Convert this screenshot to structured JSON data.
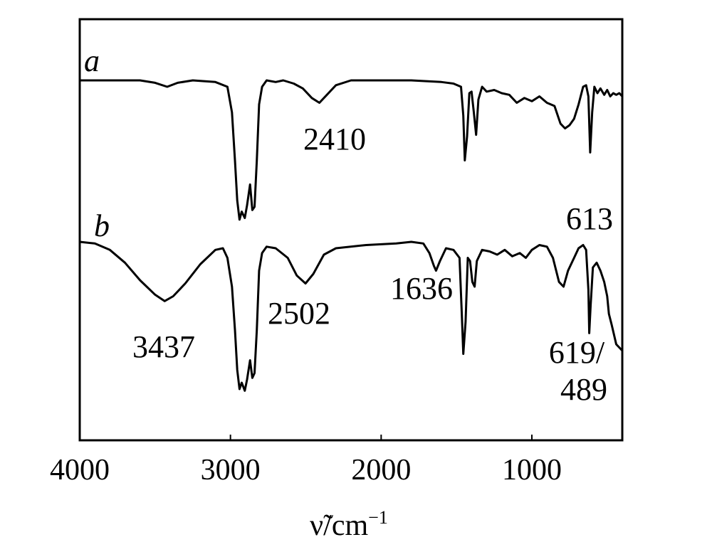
{
  "chart_data": {
    "type": "line",
    "title": "",
    "xlabel": "ν̃/cm",
    "xlabel_superscript": "−1",
    "ylabel": "",
    "xlim": [
      4000,
      400
    ],
    "x_reversed": true,
    "x_ticks": [
      "4000",
      "3000",
      "2000",
      "1000"
    ],
    "y_ticks_shown": false,
    "grid": false,
    "series": [
      {
        "name": "a",
        "color": "#000000",
        "baseline": 1.0,
        "points": [
          [
            4000,
            1.0
          ],
          [
            3800,
            1.0
          ],
          [
            3600,
            1.0
          ],
          [
            3500,
            0.985
          ],
          [
            3420,
            0.96
          ],
          [
            3350,
            0.985
          ],
          [
            3250,
            1.0
          ],
          [
            3100,
            0.99
          ],
          [
            3020,
            0.96
          ],
          [
            2990,
            0.8
          ],
          [
            2970,
            0.5
          ],
          [
            2955,
            0.25
          ],
          [
            2940,
            0.13
          ],
          [
            2925,
            0.18
          ],
          [
            2905,
            0.14
          ],
          [
            2890,
            0.22
          ],
          [
            2870,
            0.35
          ],
          [
            2855,
            0.19
          ],
          [
            2840,
            0.21
          ],
          [
            2825,
            0.5
          ],
          [
            2810,
            0.85
          ],
          [
            2790,
            0.96
          ],
          [
            2760,
            1.0
          ],
          [
            2700,
            0.99
          ],
          [
            2650,
            1.0
          ],
          [
            2580,
            0.98
          ],
          [
            2520,
            0.95
          ],
          [
            2460,
            0.89
          ],
          [
            2410,
            0.86
          ],
          [
            2360,
            0.91
          ],
          [
            2300,
            0.97
          ],
          [
            2200,
            1.0
          ],
          [
            2000,
            1.0
          ],
          [
            1800,
            1.0
          ],
          [
            1600,
            0.99
          ],
          [
            1520,
            0.98
          ],
          [
            1470,
            0.96
          ],
          [
            1455,
            0.78
          ],
          [
            1445,
            0.5
          ],
          [
            1430,
            0.65
          ],
          [
            1415,
            0.92
          ],
          [
            1400,
            0.93
          ],
          [
            1385,
            0.8
          ],
          [
            1370,
            0.66
          ],
          [
            1355,
            0.88
          ],
          [
            1330,
            0.96
          ],
          [
            1300,
            0.93
          ],
          [
            1250,
            0.94
          ],
          [
            1200,
            0.92
          ],
          [
            1150,
            0.91
          ],
          [
            1100,
            0.86
          ],
          [
            1050,
            0.89
          ],
          [
            1000,
            0.87
          ],
          [
            950,
            0.9
          ],
          [
            900,
            0.86
          ],
          [
            850,
            0.84
          ],
          [
            810,
            0.73
          ],
          [
            780,
            0.7
          ],
          [
            750,
            0.72
          ],
          [
            720,
            0.76
          ],
          [
            690,
            0.85
          ],
          [
            660,
            0.96
          ],
          [
            640,
            0.97
          ],
          [
            625,
            0.9
          ],
          [
            613,
            0.55
          ],
          [
            600,
            0.8
          ],
          [
            585,
            0.96
          ],
          [
            565,
            0.92
          ],
          [
            545,
            0.95
          ],
          [
            520,
            0.91
          ],
          [
            500,
            0.94
          ],
          [
            480,
            0.9
          ],
          [
            460,
            0.92
          ],
          [
            440,
            0.91
          ],
          [
            420,
            0.92
          ],
          [
            400,
            0.9
          ]
        ]
      },
      {
        "name": "b",
        "color": "#000000",
        "baseline": 0.0,
        "points": [
          [
            4000,
            1.0
          ],
          [
            3900,
            0.99
          ],
          [
            3800,
            0.95
          ],
          [
            3700,
            0.87
          ],
          [
            3600,
            0.76
          ],
          [
            3500,
            0.67
          ],
          [
            3437,
            0.63
          ],
          [
            3380,
            0.66
          ],
          [
            3300,
            0.74
          ],
          [
            3200,
            0.86
          ],
          [
            3100,
            0.95
          ],
          [
            3050,
            0.96
          ],
          [
            3020,
            0.9
          ],
          [
            2990,
            0.72
          ],
          [
            2970,
            0.45
          ],
          [
            2955,
            0.2
          ],
          [
            2940,
            0.08
          ],
          [
            2925,
            0.12
          ],
          [
            2905,
            0.07
          ],
          [
            2890,
            0.14
          ],
          [
            2870,
            0.26
          ],
          [
            2855,
            0.15
          ],
          [
            2840,
            0.18
          ],
          [
            2825,
            0.45
          ],
          [
            2810,
            0.82
          ],
          [
            2790,
            0.93
          ],
          [
            2760,
            0.97
          ],
          [
            2700,
            0.96
          ],
          [
            2620,
            0.9
          ],
          [
            2560,
            0.79
          ],
          [
            2502,
            0.74
          ],
          [
            2450,
            0.8
          ],
          [
            2380,
            0.92
          ],
          [
            2300,
            0.96
          ],
          [
            2100,
            0.98
          ],
          [
            1900,
            0.99
          ],
          [
            1800,
            1.0
          ],
          [
            1720,
            0.99
          ],
          [
            1680,
            0.93
          ],
          [
            1650,
            0.85
          ],
          [
            1636,
            0.82
          ],
          [
            1610,
            0.88
          ],
          [
            1570,
            0.96
          ],
          [
            1520,
            0.95
          ],
          [
            1480,
            0.9
          ],
          [
            1465,
            0.55
          ],
          [
            1455,
            0.3
          ],
          [
            1440,
            0.5
          ],
          [
            1425,
            0.9
          ],
          [
            1410,
            0.88
          ],
          [
            1395,
            0.75
          ],
          [
            1380,
            0.72
          ],
          [
            1365,
            0.88
          ],
          [
            1330,
            0.95
          ],
          [
            1280,
            0.94
          ],
          [
            1230,
            0.92
          ],
          [
            1180,
            0.95
          ],
          [
            1130,
            0.91
          ],
          [
            1080,
            0.93
          ],
          [
            1040,
            0.9
          ],
          [
            1000,
            0.95
          ],
          [
            950,
            0.98
          ],
          [
            900,
            0.97
          ],
          [
            860,
            0.9
          ],
          [
            820,
            0.75
          ],
          [
            790,
            0.72
          ],
          [
            760,
            0.82
          ],
          [
            720,
            0.9
          ],
          [
            690,
            0.96
          ],
          [
            660,
            0.98
          ],
          [
            640,
            0.95
          ],
          [
            625,
            0.7
          ],
          [
            619,
            0.43
          ],
          [
            610,
            0.6
          ],
          [
            595,
            0.84
          ],
          [
            570,
            0.87
          ],
          [
            545,
            0.82
          ],
          [
            520,
            0.75
          ],
          [
            500,
            0.66
          ],
          [
            489,
            0.55
          ],
          [
            470,
            0.48
          ],
          [
            440,
            0.36
          ],
          [
            400,
            0.32
          ]
        ]
      }
    ],
    "annotations": [
      {
        "text": "2410",
        "x": 2410,
        "series": "a"
      },
      {
        "text": "613",
        "x": 613,
        "series": "a"
      },
      {
        "text": "3437",
        "x": 3437,
        "series": "b"
      },
      {
        "text": "2502",
        "x": 2502,
        "series": "b"
      },
      {
        "text": "1636",
        "x": 1636,
        "series": "b"
      },
      {
        "text": "619/",
        "x": 619,
        "series": "b"
      },
      {
        "text": "489",
        "x": 489,
        "series": "b"
      }
    ]
  }
}
